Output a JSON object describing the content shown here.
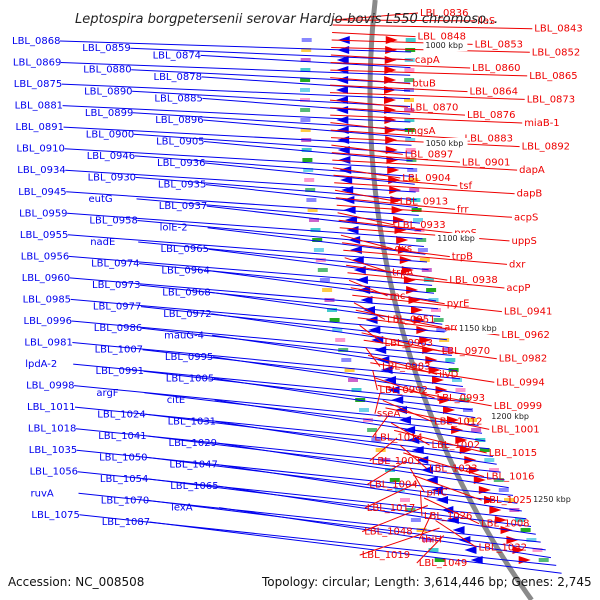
{
  "title": "Leptospira borgpetersenii serovar Hardjo-bovis L550 chromoso...",
  "footer": {
    "accession": "Accession: NC_008508",
    "summary": "Topology: circular; Length: 3,614,446 bp; Genes: 2,745"
  },
  "colors": {
    "forward": "#0000ee",
    "reverse": "#ee0000",
    "backbone": "#888888",
    "text": "#222222"
  },
  "kbp_ticks": [
    "1000 kbp",
    "1050 kbp",
    "1100 kbp",
    "1150 kbp",
    "1200 kbp",
    "1250 kbp"
  ],
  "left_labels": [
    "LBL_0868",
    "LBL_0859",
    "LBL_0874",
    "LBL_0869",
    "LBL_0880",
    "LBL_0878",
    "LBL_0875",
    "LBL_0890",
    "LBL_0885",
    "LBL_0881",
    "LBL_0899",
    "LBL_0896",
    "LBL_0891",
    "LBL_0900",
    "LBL_0905",
    "LBL_0910",
    "LBL_0946",
    "LBL_0936",
    "LBL_0934",
    "LBL_0930",
    "LBL_0935",
    "LBL_0945",
    "eutG",
    "LBL_0937",
    "LBL_0959",
    "LBL_0958",
    "lolE-2",
    "LBL_0955",
    "nadE",
    "LBL_0965",
    "LBL_0956",
    "LBL_0974",
    "LBL_0964",
    "LBL_0960",
    "LBL_0973",
    "LBL_0968",
    "LBL_0985",
    "LBL_0977",
    "LBL_0972",
    "LBL_0996",
    "LBL_0986",
    "mauG-4",
    "LBL_0981",
    "LBL_1007",
    "LBL_0995",
    "lpdA-2",
    "LBL_0991",
    "LBL_1005",
    "LBL_0998",
    "argF",
    "citE",
    "LBL_1011",
    "LBL_1024",
    "LBL_1031",
    "LBL_1018",
    "LBL_1041",
    "LBL_1029",
    "LBL_1035",
    "LBL_1050",
    "LBL_1047",
    "LBL_1056",
    "LBL_1054",
    "LBL_1065",
    "ruvA",
    "LBL_1070",
    "lexA",
    "LBL_1075",
    "LBL_1087"
  ],
  "right_labels": [
    "LBL_0836",
    "ileS",
    "LBL_0843",
    "LBL_0848",
    "LBL_0853",
    "LBL_0852",
    "capA",
    "LBL_0860",
    "LBL_0865",
    "btuB",
    "LBL_0864",
    "LBL_0873",
    "LBL_0870",
    "LBL_0876",
    "miaB-1",
    "mgsA",
    "LBL_0883",
    "LBL_0892",
    "LBL_0897",
    "LBL_0901",
    "dapA",
    "LBL_0904",
    "tsf",
    "dapB",
    "LBL_0913",
    "frr",
    "acpS",
    "LBL_0933",
    "proS",
    "uppS",
    "dxs",
    "trpB",
    "dxr",
    "trpA",
    "LBL_0938",
    "acpP",
    "rnc",
    "pyrE",
    "LBL_0941",
    "LBL_0951",
    "aroB",
    "LBL_0962",
    "LBL_0963",
    "LBL_0970",
    "LBL_0982",
    "LBL_0983",
    "ilvD",
    "LBL_0994",
    "LBL_0992",
    "LBL_0993",
    "LBL_0999",
    "sseA",
    "LBL_1012",
    "LBL_1001",
    "LBL_1014",
    "LBL_1002",
    "LBL_1015",
    "LBL_1003",
    "LBL_1023",
    "LBL_1016",
    "LBL_1004",
    "prfC",
    "LBL_1025",
    "LBL_1017",
    "LBL_1026",
    "LBL_1008",
    "LBL_1048",
    "thiH",
    "LBL_1032",
    "LBL_1019",
    "LBL_1049"
  ]
}
